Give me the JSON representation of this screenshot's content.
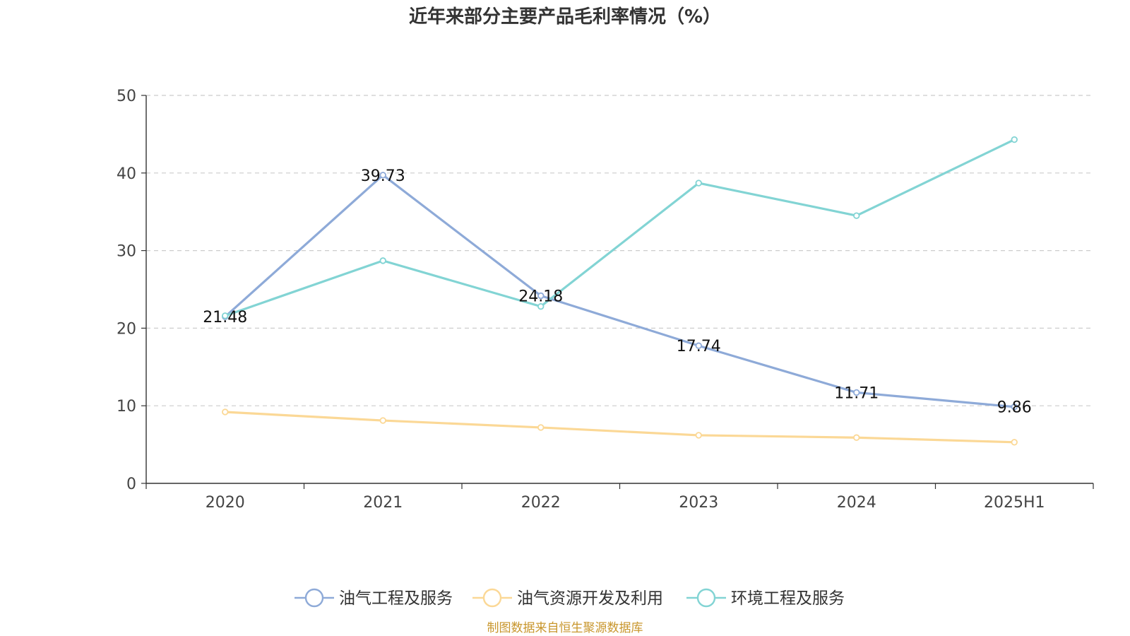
{
  "chart_data": {
    "type": "line",
    "title": "近年来部分主要产品毛利率情况（%）",
    "categories": [
      "2020",
      "2021",
      "2022",
      "2023",
      "2024",
      "2025H1"
    ],
    "ylim": [
      0,
      50
    ],
    "yticks": [
      0,
      10,
      20,
      30,
      40,
      50
    ],
    "grid": true,
    "legend_position": "bottom",
    "series": [
      {
        "name": "油气工程及服务",
        "color": "#8eaad8",
        "values": [
          21.48,
          39.73,
          24.18,
          17.74,
          11.71,
          9.86
        ],
        "labels": [
          "21.48",
          "39.73",
          "24.18",
          "17.74",
          "11.71",
          "9.86"
        ]
      },
      {
        "name": "油气资源开发及利用",
        "color": "#fbd896",
        "values": [
          9.2,
          8.1,
          7.2,
          6.2,
          5.9,
          5.3
        ]
      },
      {
        "name": "环境工程及服务",
        "color": "#82d4d4",
        "values": [
          21.6,
          28.7,
          22.8,
          38.7,
          34.5,
          44.3
        ]
      }
    ]
  },
  "footer": {
    "source": "制图数据来自恒生聚源数据库"
  }
}
